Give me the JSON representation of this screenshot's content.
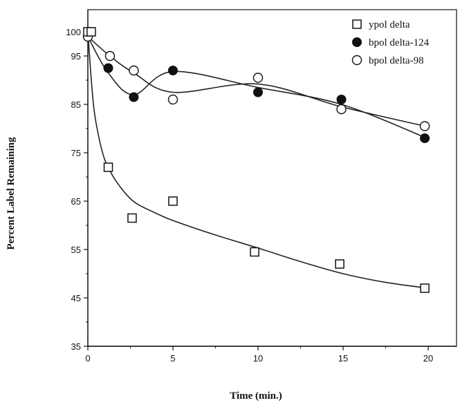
{
  "chart_data": {
    "type": "scatter",
    "title": "",
    "xlabel": "Time (min.)",
    "ylabel": "Percent Label Remaining",
    "xlim": [
      0,
      21.3
    ],
    "ylim": [
      35,
      102
    ],
    "xticks": [
      0,
      5,
      10,
      15,
      20
    ],
    "yticks": [
      35,
      45,
      55,
      65,
      75,
      85,
      95,
      100
    ],
    "grid": false,
    "legend_position": "top-right",
    "series": [
      {
        "name": "ypol delta",
        "marker": "square-open",
        "x": [
          0,
          0.2,
          1.2,
          2.6,
          5,
          9.8,
          14.8,
          19.8
        ],
        "y": [
          100,
          100,
          72,
          61.5,
          65,
          54.5,
          52,
          47
        ],
        "fit_x": [
          0,
          0.3,
          0.6,
          1,
          1.5,
          2,
          2.5,
          3,
          4,
          5,
          7.5,
          10,
          12.5,
          15,
          17.5,
          20
        ],
        "fit_y": [
          100,
          86,
          79,
          73.5,
          70,
          67.5,
          65.5,
          64.2,
          62.5,
          61,
          58,
          55.3,
          52.5,
          50,
          48.2,
          47
        ]
      },
      {
        "name": "bpol delta-124",
        "marker": "circle-filled",
        "x": [
          0,
          1.2,
          2.7,
          5,
          10,
          14.9,
          19.8
        ],
        "y": [
          99,
          92.5,
          86.5,
          92,
          87.5,
          86,
          78
        ],
        "fit_x": [
          0,
          1.2,
          2.7,
          5,
          10,
          14.9,
          19.8
        ],
        "fit_y": [
          99,
          91.5,
          87,
          91.8,
          88.5,
          85,
          78.2
        ]
      },
      {
        "name": "bpol delta-98",
        "marker": "circle-open",
        "x": [
          0,
          1.3,
          2.7,
          5,
          10,
          14.9,
          19.8
        ],
        "y": [
          99,
          95,
          92,
          86,
          90.5,
          84,
          80.5
        ],
        "fit_x": [
          0,
          1.3,
          2.7,
          5,
          10,
          14.9,
          19.8
        ],
        "fit_y": [
          99,
          95,
          91.5,
          87.5,
          89.2,
          84.5,
          80.5
        ]
      }
    ]
  }
}
